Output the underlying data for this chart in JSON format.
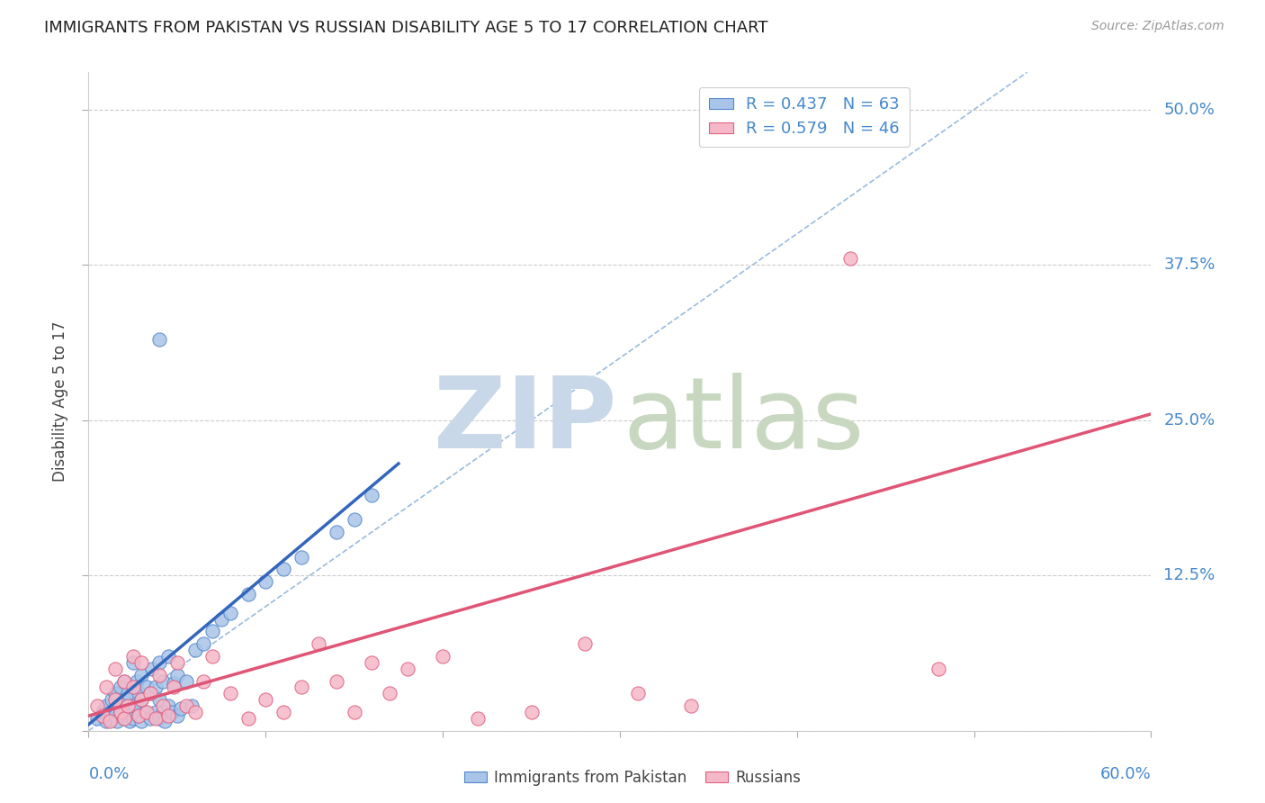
{
  "title": "IMMIGRANTS FROM PAKISTAN VS RUSSIAN DISABILITY AGE 5 TO 17 CORRELATION CHART",
  "source": "Source: ZipAtlas.com",
  "ylabel": "Disability Age 5 to 17",
  "ytick_values": [
    0,
    0.125,
    0.25,
    0.375,
    0.5
  ],
  "ytick_labels": [
    "",
    "12.5%",
    "25.0%",
    "37.5%",
    "50.0%"
  ],
  "xlim": [
    0.0,
    0.6
  ],
  "ylim": [
    0.0,
    0.53
  ],
  "color_pakistan_fill": "#a8c4e8",
  "color_pakistan_edge": "#5588cc",
  "color_russia_fill": "#f5b8c8",
  "color_russia_edge": "#e06080",
  "color_pakistan_line": "#3366bb",
  "color_russia_line": "#e05575",
  "diagonal_color": "#99bbdd",
  "diagonal_style": "--",
  "pakistan_scatter_x": [
    0.005,
    0.008,
    0.01,
    0.01,
    0.012,
    0.013,
    0.015,
    0.015,
    0.016,
    0.018,
    0.018,
    0.02,
    0.02,
    0.02,
    0.022,
    0.022,
    0.023,
    0.025,
    0.025,
    0.025,
    0.025,
    0.026,
    0.027,
    0.028,
    0.028,
    0.03,
    0.03,
    0.03,
    0.032,
    0.033,
    0.035,
    0.035,
    0.036,
    0.038,
    0.038,
    0.04,
    0.04,
    0.04,
    0.042,
    0.042,
    0.043,
    0.045,
    0.045,
    0.047,
    0.048,
    0.05,
    0.05,
    0.052,
    0.055,
    0.058,
    0.06,
    0.065,
    0.07,
    0.075,
    0.08,
    0.09,
    0.1,
    0.11,
    0.12,
    0.14,
    0.15,
    0.16,
    0.04
  ],
  "pakistan_scatter_y": [
    0.01,
    0.015,
    0.008,
    0.02,
    0.01,
    0.025,
    0.012,
    0.03,
    0.008,
    0.015,
    0.035,
    0.01,
    0.025,
    0.04,
    0.012,
    0.03,
    0.008,
    0.015,
    0.035,
    0.055,
    0.01,
    0.02,
    0.04,
    0.012,
    0.03,
    0.008,
    0.025,
    0.045,
    0.015,
    0.035,
    0.01,
    0.03,
    0.05,
    0.015,
    0.035,
    0.01,
    0.025,
    0.055,
    0.015,
    0.04,
    0.008,
    0.02,
    0.06,
    0.015,
    0.038,
    0.012,
    0.045,
    0.018,
    0.04,
    0.02,
    0.065,
    0.07,
    0.08,
    0.09,
    0.095,
    0.11,
    0.12,
    0.13,
    0.14,
    0.16,
    0.17,
    0.19,
    0.315
  ],
  "russia_scatter_x": [
    0.005,
    0.008,
    0.01,
    0.012,
    0.015,
    0.015,
    0.018,
    0.02,
    0.02,
    0.022,
    0.025,
    0.025,
    0.028,
    0.03,
    0.03,
    0.033,
    0.035,
    0.038,
    0.04,
    0.042,
    0.045,
    0.048,
    0.05,
    0.055,
    0.06,
    0.065,
    0.07,
    0.08,
    0.09,
    0.1,
    0.11,
    0.12,
    0.13,
    0.14,
    0.15,
    0.16,
    0.17,
    0.18,
    0.2,
    0.22,
    0.25,
    0.28,
    0.31,
    0.34,
    0.43,
    0.48
  ],
  "russia_scatter_y": [
    0.02,
    0.012,
    0.035,
    0.008,
    0.025,
    0.05,
    0.015,
    0.01,
    0.04,
    0.02,
    0.035,
    0.06,
    0.012,
    0.025,
    0.055,
    0.015,
    0.03,
    0.01,
    0.045,
    0.02,
    0.012,
    0.035,
    0.055,
    0.02,
    0.015,
    0.04,
    0.06,
    0.03,
    0.01,
    0.025,
    0.015,
    0.035,
    0.07,
    0.04,
    0.015,
    0.055,
    0.03,
    0.05,
    0.06,
    0.01,
    0.015,
    0.07,
    0.03,
    0.02,
    0.38,
    0.05
  ],
  "pak_line_x": [
    0.0,
    0.175
  ],
  "pak_line_y": [
    0.005,
    0.215
  ],
  "rus_line_x": [
    0.0,
    0.6
  ],
  "rus_line_y": [
    0.012,
    0.255
  ],
  "watermark_zip_color": "#c8d8e8",
  "watermark_atlas_color": "#c8d8c0"
}
